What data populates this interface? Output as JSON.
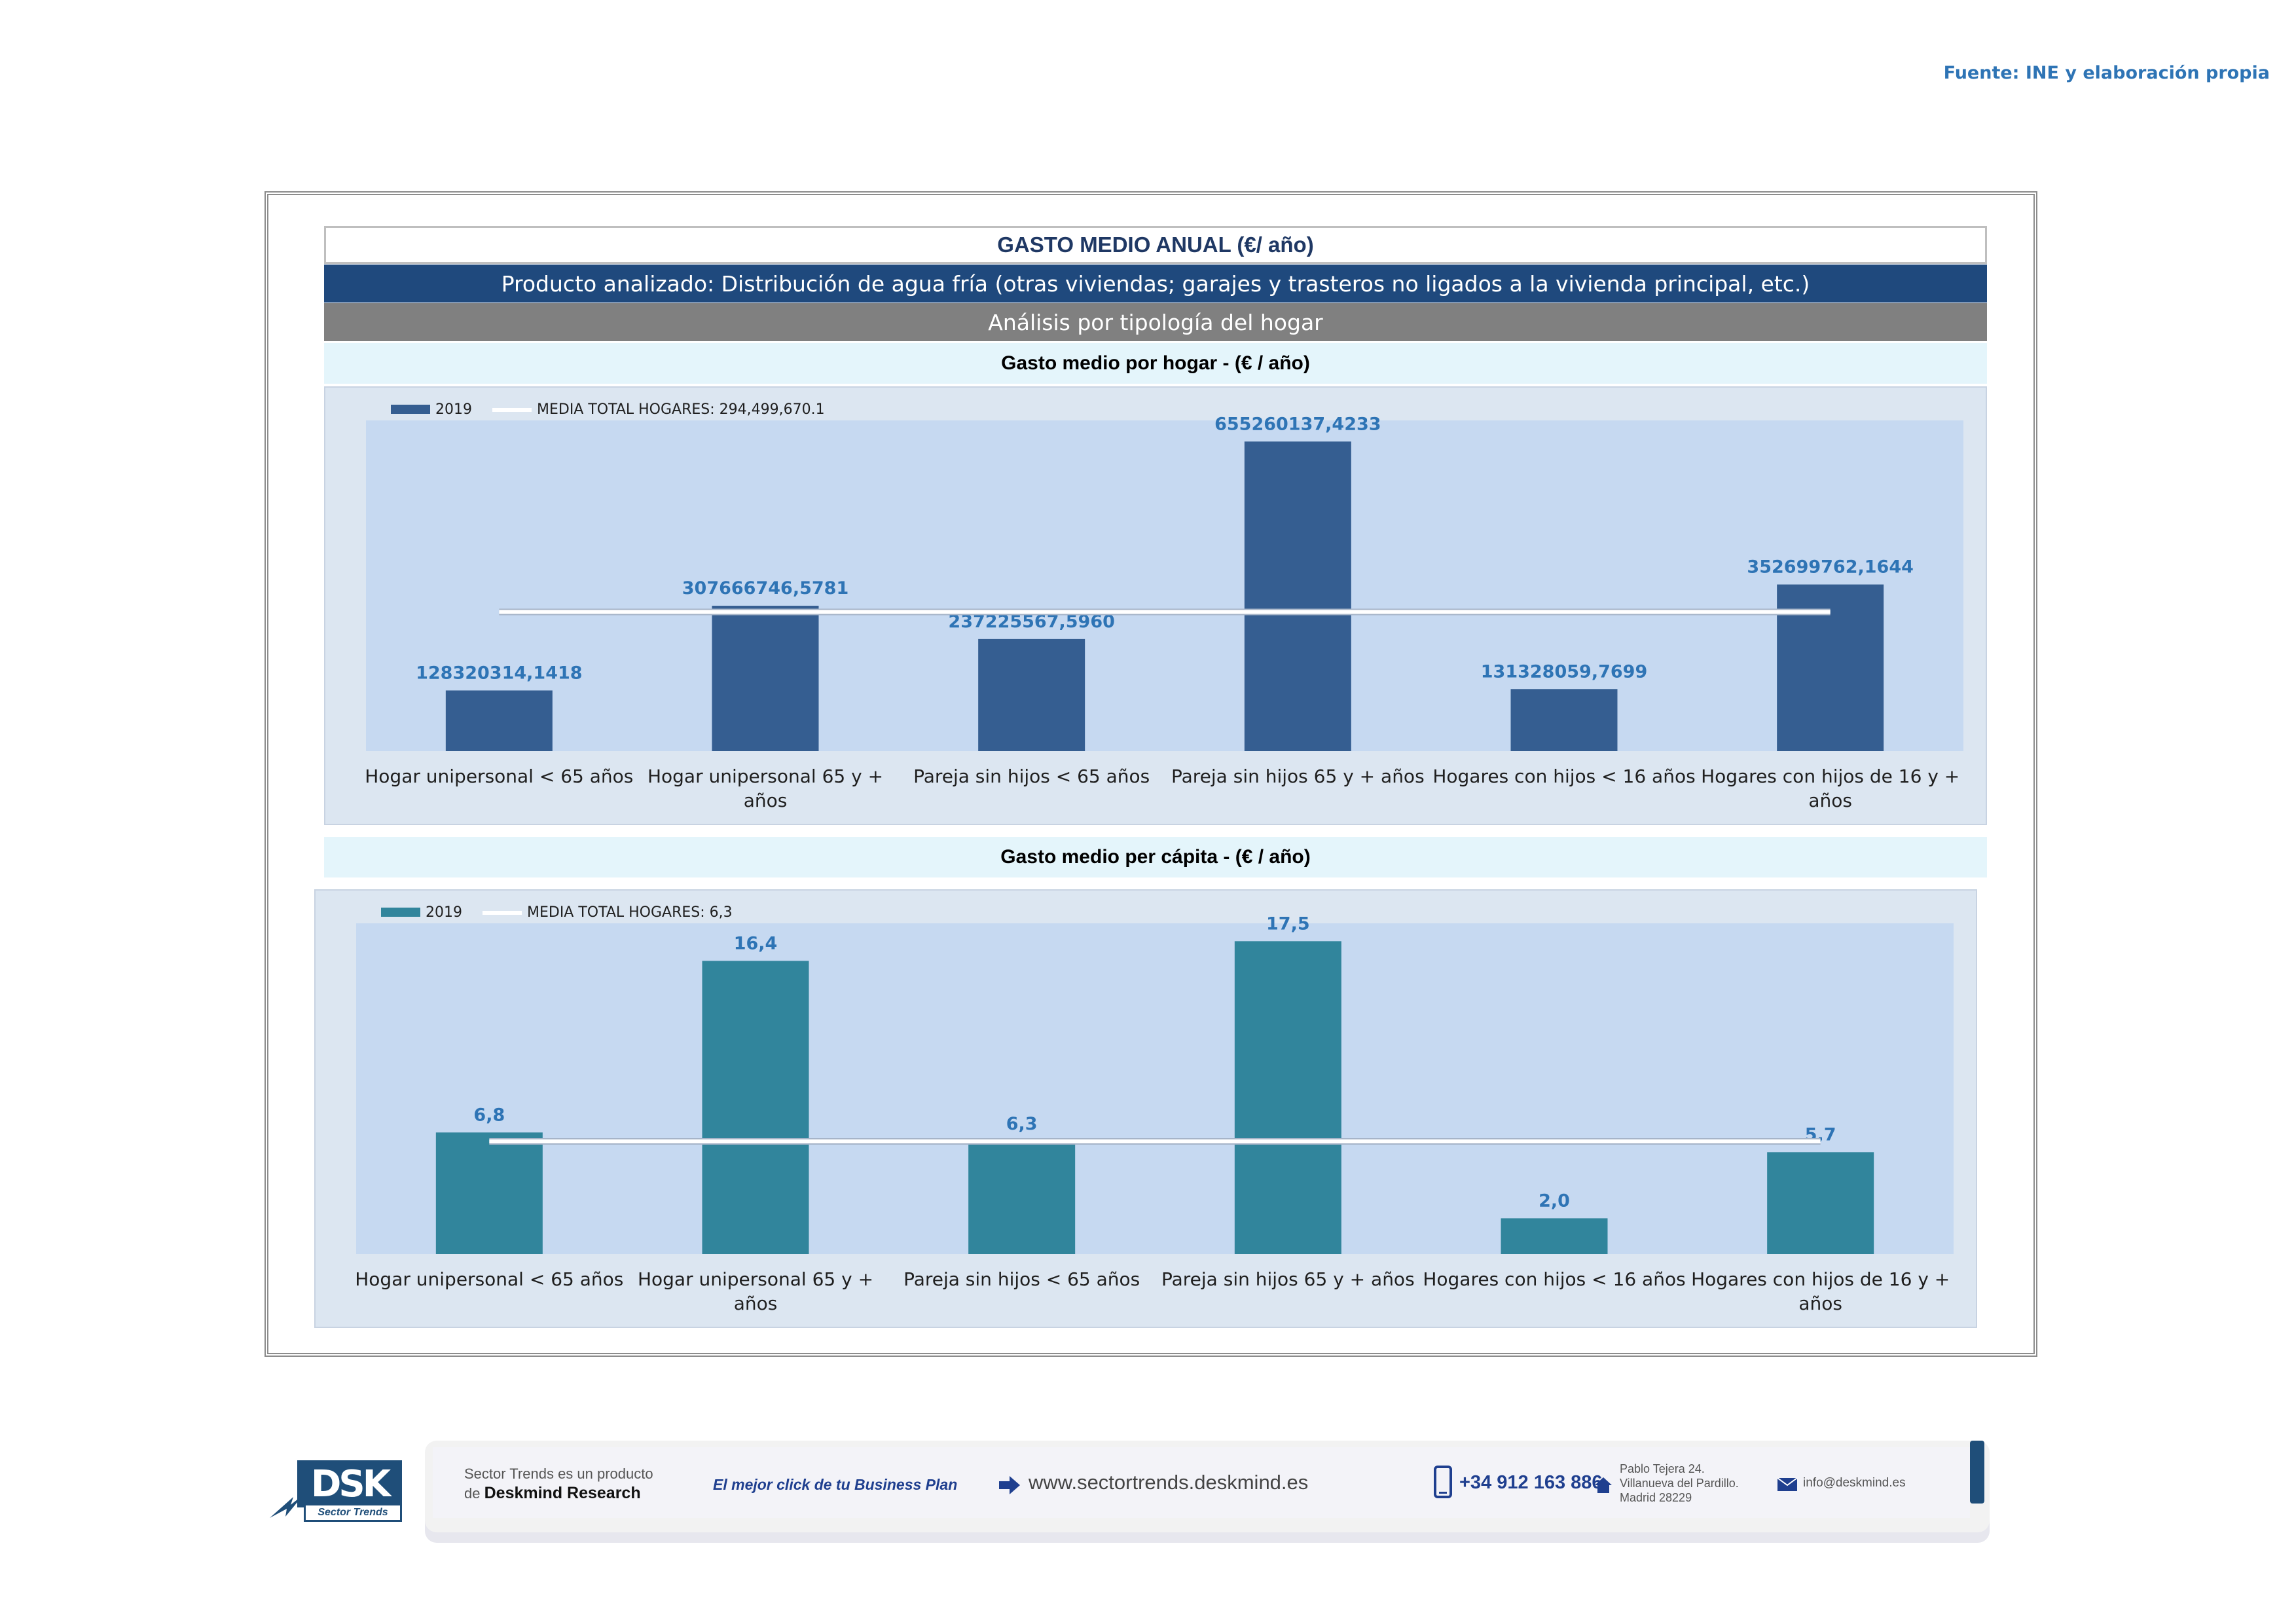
{
  "source": "Fuente: INE y elaboración propia",
  "header": {
    "title": "GASTO MEDIO ANUAL (€/ año)",
    "product": "Producto analizado: Distribución de agua fría (otras viviendas; garajes y trasteros no ligados a la vivienda principal, etc.)",
    "analysis": "Análisis por tipología del hogar"
  },
  "section1_title": "Gasto medio por hogar -  (€ / año)",
  "section2_title": "Gasto medio per cápita -  (€ / año)",
  "chart_data": [
    {
      "type": "bar",
      "categories": [
        "Hogar unipersonal < 65 años",
        "Hogar unipersonal  65 y + años",
        "Pareja sin hijos < 65 años",
        "Pareja sin hijos 65 y + años",
        "Hogares con hijos < 16 años",
        "Hogares con hijos de 16 y + años"
      ],
      "series": [
        {
          "name": "2019",
          "values": [
            128320314.1418,
            307666746.5781,
            237225567.596,
            655260137.4233,
            131328059.7699,
            352699762.1644
          ],
          "color": "#355e91"
        }
      ],
      "data_labels": [
        "128320314,1418",
        "307666746,5781",
        "237225567,5960",
        "655260137,4233",
        "131328059,7699",
        "352699762,1644"
      ],
      "reference_line": {
        "name": "MEDIA TOTAL  HOGARES:",
        "value": 294499670.1,
        "label": "294,499,670.1",
        "color": "#ffffff"
      },
      "ylim": [
        0,
        700000000
      ],
      "legend": "top-left",
      "grid": false
    },
    {
      "type": "bar",
      "categories": [
        "Hogar unipersonal < 65 años",
        "Hogar unipersonal  65 y + años",
        "Pareja sin hijos < 65 años",
        "Pareja sin hijos 65 y + años",
        "Hogares con hijos < 16 años",
        "Hogares con hijos de 16 y + años"
      ],
      "series": [
        {
          "name": "2019",
          "values": [
            6.8,
            16.4,
            6.3,
            17.5,
            2.0,
            5.7
          ],
          "color": "#31859c"
        }
      ],
      "data_labels": [
        "6,8",
        "16,4",
        "6,3",
        "17,5",
        "2,0",
        "5,7"
      ],
      "reference_line": {
        "name": "MEDIA TOTAL  HOGARES:",
        "value": 6.3,
        "label": "6,3",
        "color": "#ffffff"
      },
      "ylim": [
        0,
        18.5
      ],
      "legend": "top-left",
      "grid": false
    }
  ],
  "footer": {
    "logo": "DSK",
    "logo_sub": "Sector Trends",
    "product_line1": "Sector Trends es un producto",
    "product_line2_prefix": "de",
    "product_line2_brand": "Deskmind Research",
    "slogan": "El mejor click de tu Business Plan",
    "website": "www.sectortrends.deskmind.es",
    "phone": "+34 912 163 886",
    "address_line1": "Pablo Tejera 24.",
    "address_line2": "Villanueva del Pardillo.",
    "address_line3": "Madrid 28229",
    "email": "info@deskmind.es"
  }
}
